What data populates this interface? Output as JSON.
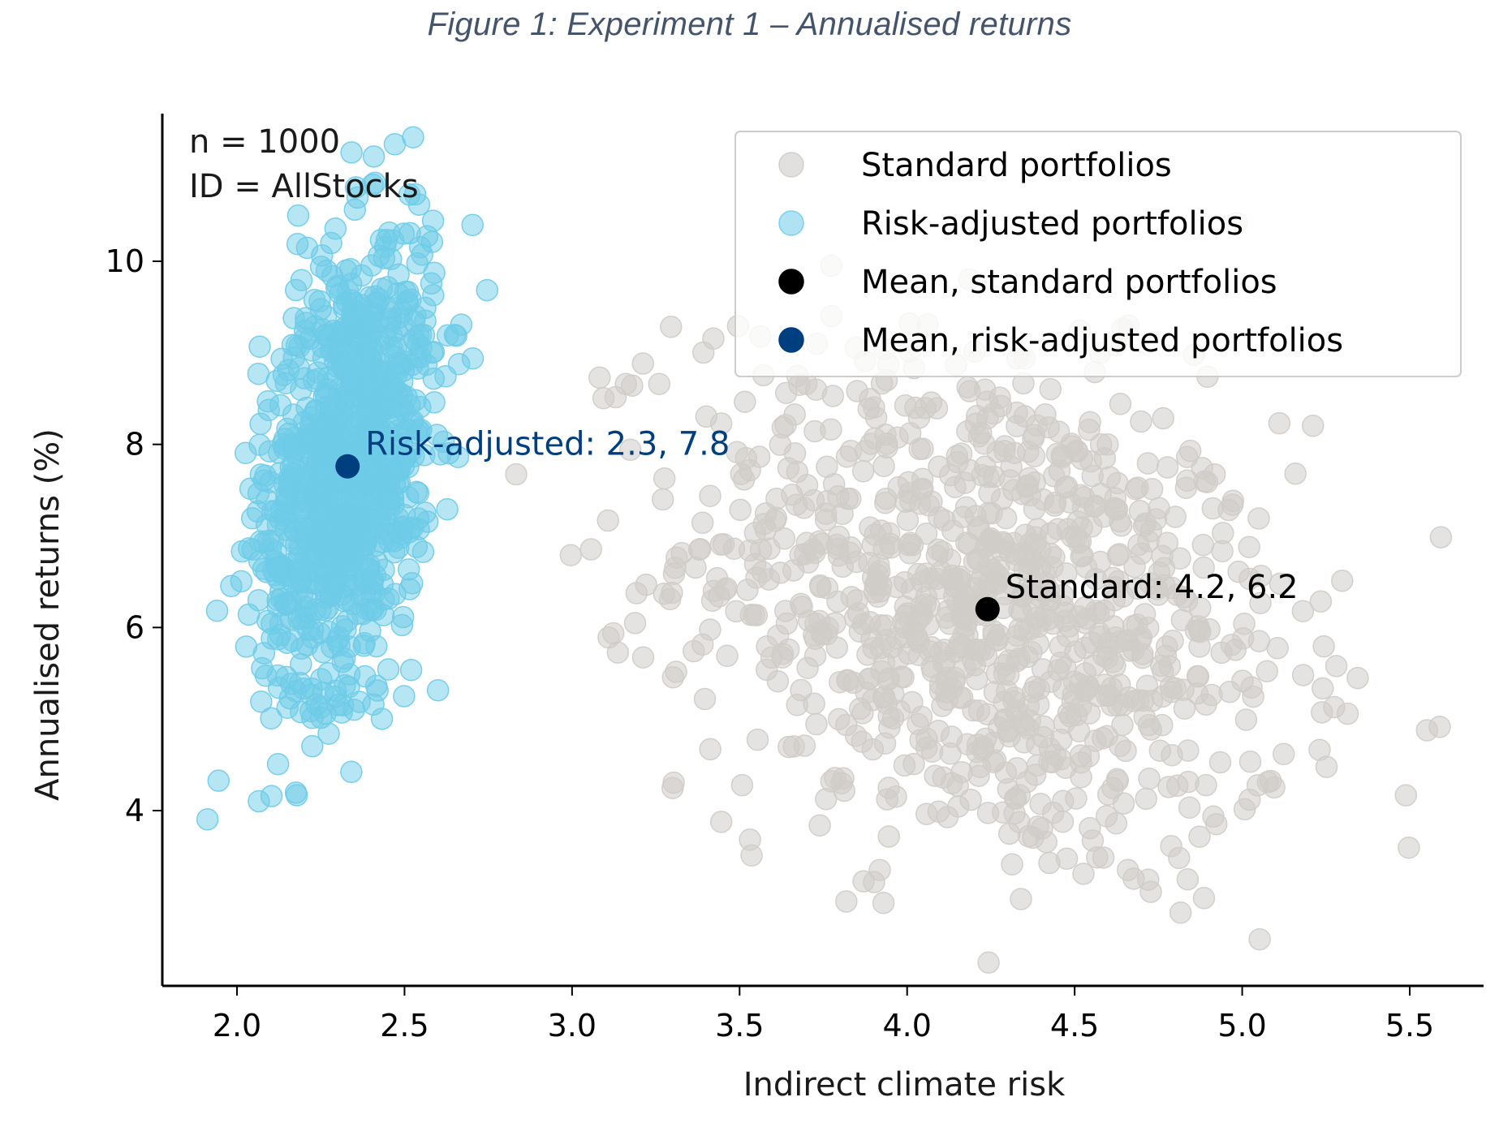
{
  "figure_caption": "Figure 1: Experiment 1 – Annualised returns",
  "chart_data": {
    "type": "scatter",
    "title": "",
    "xlabel": "Indirect climate risk",
    "ylabel": "Annualised returns (%)",
    "xlim": [
      1.78,
      5.72
    ],
    "ylim": [
      2.2,
      11.6
    ],
    "x_ticks": [
      2.0,
      2.5,
      3.0,
      3.5,
      4.0,
      4.5,
      5.0,
      5.5
    ],
    "x_tick_labels": [
      "2.0",
      "2.5",
      "3.0",
      "3.5",
      "4.0",
      "4.5",
      "5.0",
      "5.5"
    ],
    "y_ticks": [
      4,
      6,
      8,
      10
    ],
    "y_tick_labels": [
      "4",
      "6",
      "8",
      "10"
    ],
    "grid": false,
    "info_text": [
      "n = 1000",
      "ID = AllStocks"
    ],
    "legend_position": "top-right",
    "legend": [
      {
        "label": "Standard portfolios",
        "color": "#cfccc8",
        "alpha": 0.6
      },
      {
        "label": "Risk-adjusted portfolios",
        "color": "#6ecbe8",
        "alpha": 0.55
      },
      {
        "label": "Mean, standard portfolios",
        "color": "#000000",
        "alpha": 1
      },
      {
        "label": "Mean, risk-adjusted portfolios",
        "color": "#003f7f",
        "alpha": 1
      }
    ],
    "series": [
      {
        "name": "Standard portfolios",
        "n": 1000,
        "color": "#cfccc8",
        "distribution": {
          "mean_x": 4.24,
          "mean_y": 6.2,
          "sd_x": 0.45,
          "sd_y": 1.45,
          "corr": -0.25
        }
      },
      {
        "name": "Risk-adjusted portfolios",
        "n": 1000,
        "color": "#6ecbe8",
        "distribution": {
          "mean_x": 2.33,
          "mean_y": 7.78,
          "sd_x": 0.13,
          "sd_y": 1.25,
          "corr": 0.35
        }
      }
    ],
    "means": [
      {
        "name": "Mean, standard portfolios",
        "x": 4.24,
        "y": 6.2,
        "color": "#000000",
        "label": "Standard: 4.2, 6.2"
      },
      {
        "name": "Mean, risk-adjusted portfolios",
        "x": 2.33,
        "y": 7.76,
        "color": "#003f7f",
        "label": "Risk-adjusted: 2.3, 7.8"
      }
    ]
  }
}
